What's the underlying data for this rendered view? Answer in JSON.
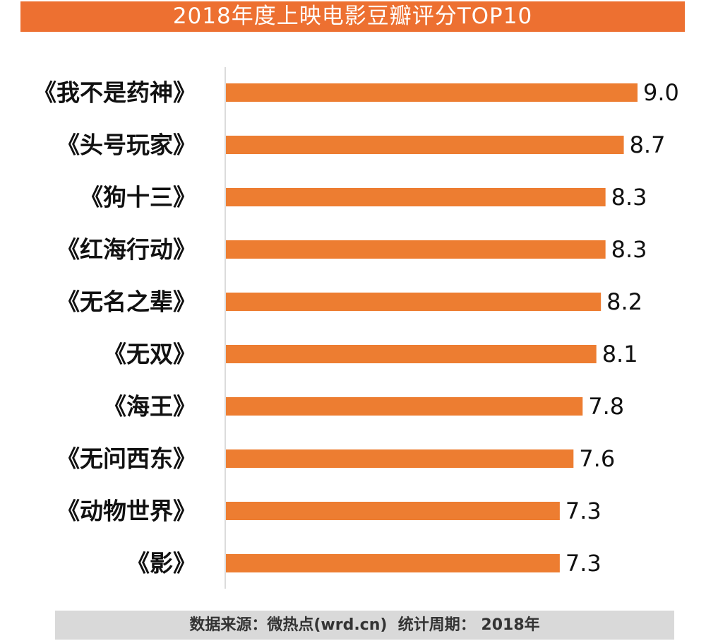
{
  "chart_data": {
    "type": "bar",
    "orientation": "horizontal",
    "title": "2018年度上映电影豆瓣评分TOP10",
    "categories": [
      "《我不是药神》",
      "《头号玩家》",
      "《狗十三》",
      "《红海行动》",
      "《无名之辈》",
      "《无双》",
      "《海王》",
      "《无问西东》",
      "《动物世界》",
      "《影》"
    ],
    "values": [
      9.0,
      8.7,
      8.3,
      8.3,
      8.2,
      8.1,
      7.8,
      7.6,
      7.3,
      7.3
    ],
    "value_labels": [
      "9.0",
      "8.7",
      "8.3",
      "8.3",
      "8.2",
      "8.1",
      "7.8",
      "7.6",
      "7.3",
      "7.3"
    ],
    "xlabel": "",
    "ylabel": "",
    "xlim": [
      0,
      9.0
    ],
    "grid": false,
    "bar_color": "#ed7d31"
  },
  "footer": {
    "source": "数据来源：微热点(wrd.cn)  统计周期： 2018年"
  },
  "colors": {
    "title_bg": "#ed7031",
    "footer_bg": "#d9d9d9"
  }
}
